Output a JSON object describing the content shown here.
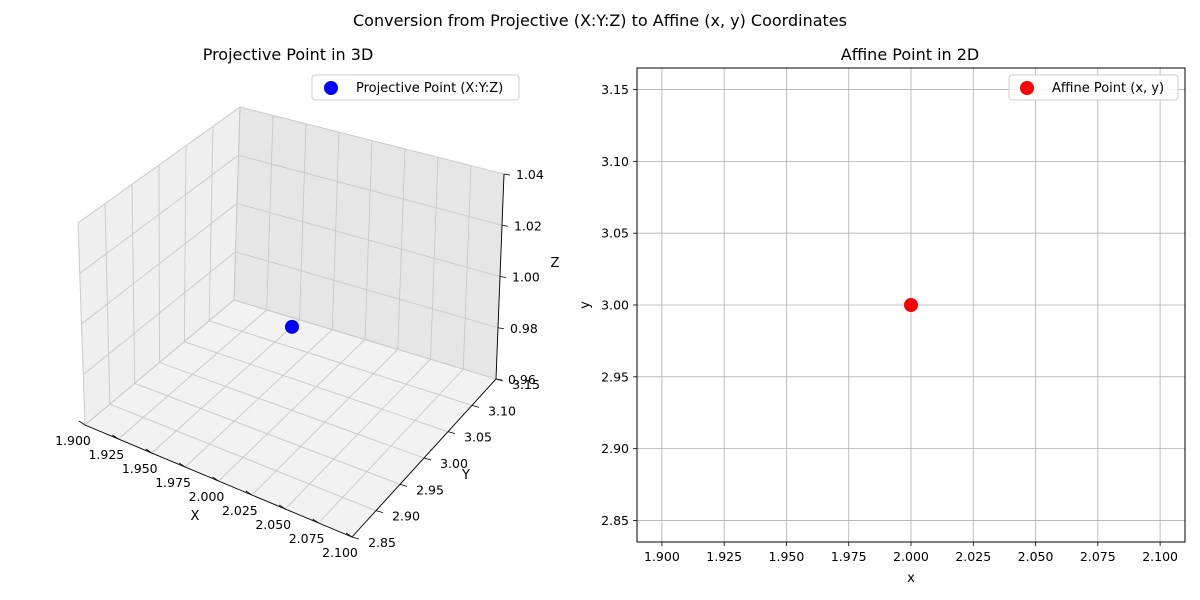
{
  "figure": {
    "suptitle": "Conversion from Projective (X:Y:Z) to Affine (x, y) Coordinates"
  },
  "chart_data": [
    {
      "type": "scatter",
      "projection": "3d",
      "title": "Projective Point in 3D",
      "xlabel": "X",
      "ylabel": "Y",
      "zlabel": "Z",
      "xlim": [
        1.9,
        2.1
      ],
      "ylim": [
        2.85,
        3.15
      ],
      "zlim": [
        0.96,
        1.04
      ],
      "x_ticks": [
        "1.900",
        "1.925",
        "1.950",
        "1.975",
        "2.000",
        "2.025",
        "2.050",
        "2.075",
        "2.100"
      ],
      "y_ticks": [
        "2.85",
        "2.90",
        "2.95",
        "3.00",
        "3.05",
        "3.10",
        "3.15"
      ],
      "z_ticks": [
        "0.96",
        "0.98",
        "1.00",
        "1.02",
        "1.04"
      ],
      "grid": true,
      "legend": "top-right",
      "series": [
        {
          "name": "Projective Point (X:Y:Z)",
          "color": "#0000ff",
          "points": [
            {
              "x": 2,
              "y": 3,
              "z": 1
            }
          ]
        }
      ]
    },
    {
      "type": "scatter",
      "title": "Affine Point in 2D",
      "xlabel": "x",
      "ylabel": "y",
      "xlim": [
        1.89,
        2.11
      ],
      "ylim": [
        2.835,
        3.165
      ],
      "x_ticks": [
        "1.900",
        "1.925",
        "1.950",
        "1.975",
        "2.000",
        "2.025",
        "2.050",
        "2.075",
        "2.100"
      ],
      "y_ticks": [
        "2.85",
        "2.90",
        "2.95",
        "3.00",
        "3.05",
        "3.10",
        "3.15"
      ],
      "grid": true,
      "legend": "top-right",
      "series": [
        {
          "name": "Affine Point (x, y)",
          "color": "#ff0000",
          "points": [
            {
              "x": 2,
              "y": 3
            }
          ]
        }
      ]
    }
  ]
}
